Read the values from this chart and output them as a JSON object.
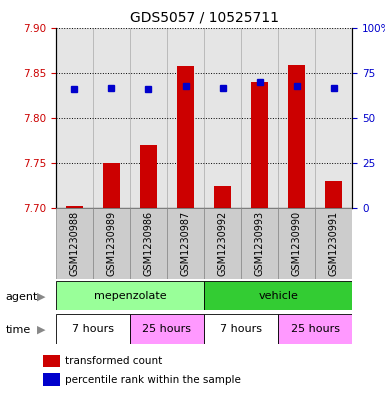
{
  "title": "GDS5057 / 10525711",
  "samples": [
    "GSM1230988",
    "GSM1230989",
    "GSM1230986",
    "GSM1230987",
    "GSM1230992",
    "GSM1230993",
    "GSM1230990",
    "GSM1230991"
  ],
  "bar_values": [
    7.702,
    7.75,
    7.77,
    7.857,
    7.725,
    7.84,
    7.858,
    7.73
  ],
  "percentile_values": [
    7.832,
    7.833,
    7.832,
    7.835,
    7.833,
    7.84,
    7.835,
    7.833
  ],
  "bar_bottom": 7.7,
  "ylim_left": [
    7.7,
    7.9
  ],
  "ylim_right": [
    0,
    100
  ],
  "yticks_left": [
    7.7,
    7.75,
    7.8,
    7.85,
    7.9
  ],
  "yticks_right": [
    0,
    25,
    50,
    75,
    100
  ],
  "bar_color": "#cc0000",
  "percentile_color": "#0000cc",
  "agent_bg_light": "#99ff99",
  "agent_bg_dark": "#33cc33",
  "time_bg_light": "#ff99ff",
  "time_bg_white": "#ffffff",
  "agent_row_label": "agent",
  "time_row_label": "time",
  "legend_bar_label": "transformed count",
  "legend_pct_label": "percentile rank within the sample",
  "title_fontsize": 10,
  "axis_label_color_left": "#cc0000",
  "axis_label_color_right": "#0000cc",
  "sample_label_bg": "#cccccc"
}
